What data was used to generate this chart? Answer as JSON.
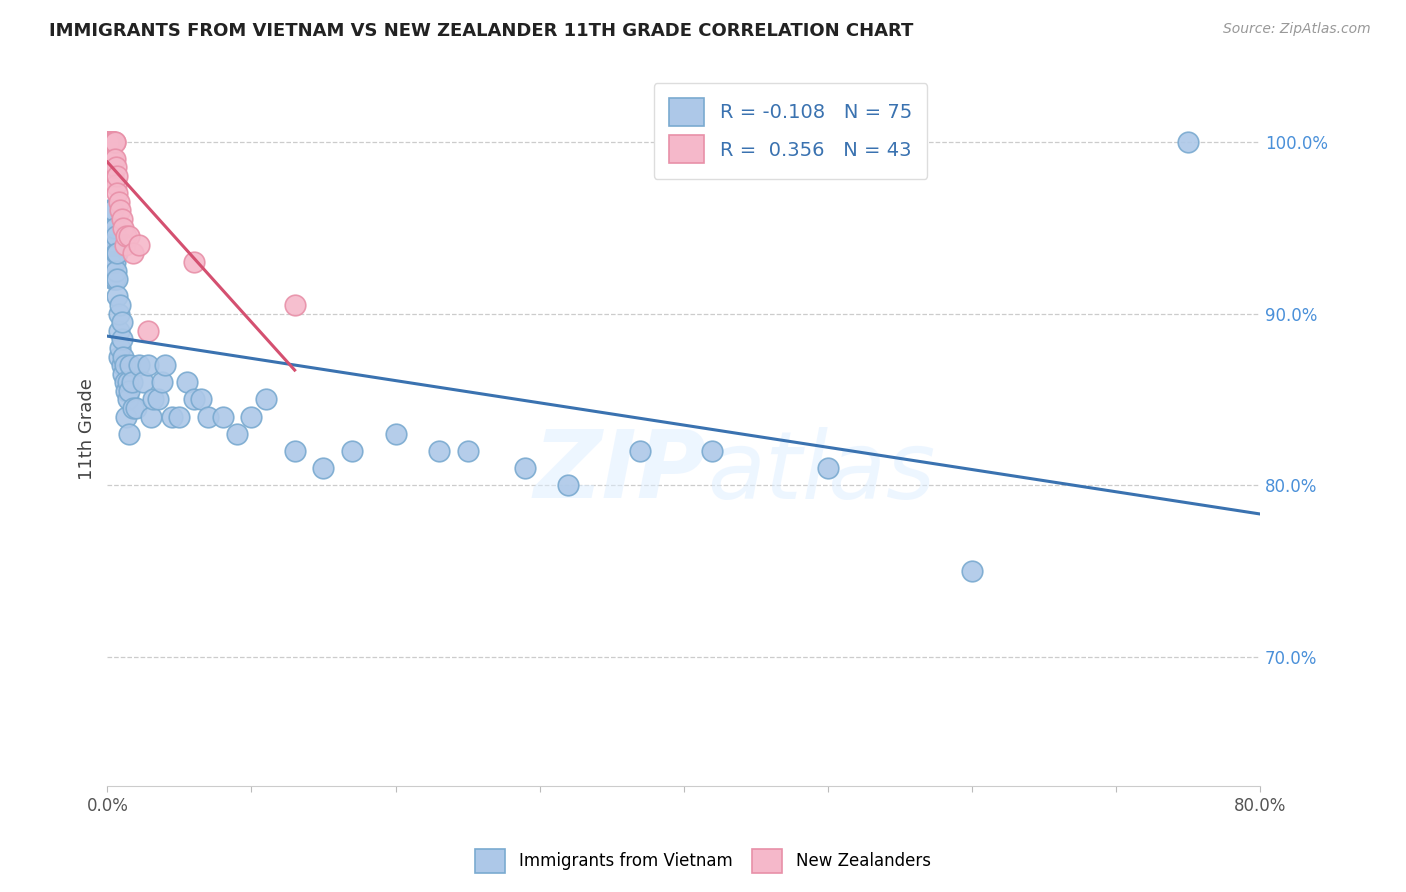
{
  "title": "IMMIGRANTS FROM VIETNAM VS NEW ZEALANDER 11TH GRADE CORRELATION CHART",
  "source": "Source: ZipAtlas.com",
  "xlabel": "",
  "ylabel": "11th Grade",
  "legend_bottom": [
    "Immigrants from Vietnam",
    "New Zealanders"
  ],
  "r_blue": -0.108,
  "n_blue": 75,
  "r_pink": 0.356,
  "n_pink": 43,
  "xlim": [
    0.0,
    0.8
  ],
  "ylim": [
    0.625,
    1.04
  ],
  "xtick_positions": [
    0.0,
    0.1,
    0.2,
    0.3,
    0.4,
    0.5,
    0.6,
    0.7,
    0.8
  ],
  "xtick_labels_show": [
    "0.0%",
    "",
    "",
    "",
    "",
    "",
    "",
    "",
    "80.0%"
  ],
  "yticks_right": [
    0.7,
    0.8,
    0.9,
    1.0
  ],
  "blue_color": "#adc8e8",
  "blue_edge_color": "#7aaad0",
  "blue_line_color": "#3a72b0",
  "pink_color": "#f5b8ca",
  "pink_edge_color": "#e890a8",
  "pink_line_color": "#d45070",
  "blue_x": [
    0.001,
    0.001,
    0.002,
    0.002,
    0.002,
    0.003,
    0.003,
    0.003,
    0.004,
    0.004,
    0.004,
    0.004,
    0.005,
    0.005,
    0.005,
    0.005,
    0.006,
    0.006,
    0.006,
    0.007,
    0.007,
    0.007,
    0.008,
    0.008,
    0.008,
    0.009,
    0.009,
    0.01,
    0.01,
    0.01,
    0.011,
    0.011,
    0.012,
    0.012,
    0.013,
    0.013,
    0.014,
    0.014,
    0.015,
    0.015,
    0.016,
    0.017,
    0.018,
    0.02,
    0.022,
    0.025,
    0.028,
    0.03,
    0.032,
    0.035,
    0.038,
    0.04,
    0.045,
    0.05,
    0.055,
    0.06,
    0.065,
    0.07,
    0.08,
    0.09,
    0.1,
    0.11,
    0.13,
    0.15,
    0.17,
    0.2,
    0.23,
    0.25,
    0.29,
    0.32,
    0.37,
    0.42,
    0.5,
    0.6,
    0.75
  ],
  "blue_y": [
    0.96,
    0.94,
    0.95,
    0.96,
    0.93,
    0.95,
    0.94,
    0.96,
    0.945,
    0.93,
    0.92,
    0.96,
    0.94,
    0.93,
    0.95,
    0.92,
    0.935,
    0.945,
    0.925,
    0.92,
    0.935,
    0.91,
    0.89,
    0.9,
    0.875,
    0.905,
    0.88,
    0.885,
    0.87,
    0.895,
    0.875,
    0.865,
    0.87,
    0.86,
    0.855,
    0.84,
    0.86,
    0.85,
    0.855,
    0.83,
    0.87,
    0.86,
    0.845,
    0.845,
    0.87,
    0.86,
    0.87,
    0.84,
    0.85,
    0.85,
    0.86,
    0.87,
    0.84,
    0.84,
    0.86,
    0.85,
    0.85,
    0.84,
    0.84,
    0.83,
    0.84,
    0.85,
    0.82,
    0.81,
    0.82,
    0.83,
    0.82,
    0.82,
    0.81,
    0.8,
    0.82,
    0.82,
    0.81,
    0.75,
    1.0
  ],
  "pink_x": [
    0.001,
    0.001,
    0.001,
    0.001,
    0.001,
    0.001,
    0.001,
    0.002,
    0.002,
    0.002,
    0.002,
    0.002,
    0.002,
    0.002,
    0.003,
    0.003,
    0.003,
    0.003,
    0.003,
    0.003,
    0.004,
    0.004,
    0.004,
    0.004,
    0.005,
    0.005,
    0.005,
    0.006,
    0.006,
    0.007,
    0.007,
    0.008,
    0.009,
    0.01,
    0.011,
    0.012,
    0.013,
    0.015,
    0.018,
    0.022,
    0.028,
    0.06,
    0.13
  ],
  "pink_y": [
    1.0,
    1.0,
    1.0,
    1.0,
    1.0,
    1.0,
    1.0,
    1.0,
    1.0,
    1.0,
    1.0,
    1.0,
    1.0,
    0.99,
    1.0,
    1.0,
    1.0,
    0.99,
    0.98,
    1.0,
    1.0,
    1.0,
    0.99,
    0.98,
    1.0,
    1.0,
    0.99,
    0.985,
    0.975,
    0.98,
    0.97,
    0.965,
    0.96,
    0.955,
    0.95,
    0.94,
    0.945,
    0.945,
    0.935,
    0.94,
    0.89,
    0.93,
    0.905
  ],
  "watermark_zip": "ZIP",
  "watermark_atlas": "atlas",
  "background_color": "#ffffff"
}
